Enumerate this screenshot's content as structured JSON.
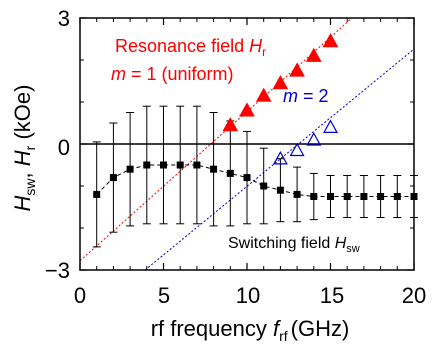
{
  "chart_data": {
    "type": "scatter",
    "xlim": [
      0,
      20
    ],
    "ylim": [
      -3,
      3
    ],
    "x_ticks": [
      "0",
      "5",
      "10",
      "15",
      "20"
    ],
    "y_ticks": [
      "3",
      "0",
      "−3"
    ],
    "xlabel": {
      "main": "rf frequency ",
      "var": "f",
      "sub": "rf",
      "unit": "(GHz)"
    },
    "ylabel": {
      "var1": "H",
      "sub1": "sw",
      "sep": ", ",
      "var2": "H",
      "sub2": "r",
      "unit": " (kOe)"
    },
    "series": [
      {
        "name": "Switching field",
        "color": "#000000",
        "marker": "square",
        "x": [
          1,
          2,
          3,
          4,
          5,
          6,
          7,
          8,
          9,
          10,
          11,
          12,
          13,
          14,
          15,
          16,
          17,
          18,
          19,
          20
        ],
        "y": [
          -1.2,
          -0.8,
          -0.6,
          -0.5,
          -0.5,
          -0.5,
          -0.5,
          -0.6,
          -0.7,
          -0.8,
          -1.0,
          -1.1,
          -1.2,
          -1.25,
          -1.25,
          -1.25,
          -1.25,
          -1.25,
          -1.25,
          -1.25
        ],
        "err": [
          1.25,
          1.3,
          1.35,
          1.4,
          1.4,
          1.4,
          1.4,
          1.35,
          1.25,
          1.1,
          0.9,
          0.75,
          0.65,
          0.55,
          0.5,
          0.5,
          0.5,
          0.5,
          0.5,
          0.5
        ]
      },
      {
        "name": "Resonance field m = 1 (uniform)",
        "color": "#ff0000",
        "marker": "triangle-filled",
        "x": [
          9,
          10,
          11,
          12,
          13,
          14,
          15
        ],
        "y": [
          0.45,
          0.8,
          1.15,
          1.45,
          1.75,
          2.1,
          2.45
        ]
      },
      {
        "name": "m = 2",
        "color": "#0000cc",
        "marker": "triangle-open",
        "x": [
          12,
          13,
          14,
          15
        ],
        "y": [
          -0.35,
          -0.15,
          0.1,
          0.4
        ]
      }
    ],
    "fit_lines": [
      {
        "color": "#ff0000",
        "x": [
          0,
          16.2
        ],
        "y": [
          -2.78,
          2.97
        ]
      },
      {
        "color": "#0000cc",
        "x": [
          3.9,
          20
        ],
        "y": [
          -3,
          2.26
        ]
      }
    ],
    "zero_line": 0
  },
  "annotations": {
    "resonance": {
      "text": "Resonance field ",
      "var": "H",
      "sub": "r",
      "color": "#ff0000"
    },
    "m1": {
      "var": "m",
      "text": " = 1 (uniform)",
      "color": "#ff0000"
    },
    "m2": {
      "var": "m",
      "text": " = 2",
      "color": "#0000cc"
    },
    "switching": {
      "text": "Switching field ",
      "var": "H",
      "sub": "sw",
      "color": "#000000"
    }
  }
}
